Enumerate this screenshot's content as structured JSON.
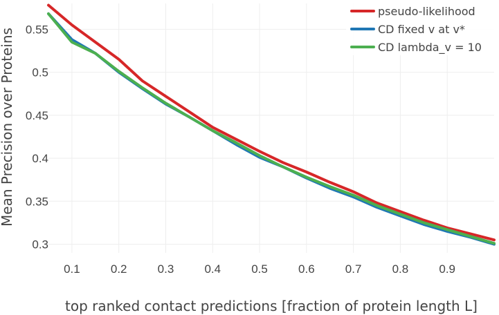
{
  "chart_data": {
    "type": "line",
    "title": "",
    "xlabel": "top ranked contact predictions [fraction of protein length L]",
    "ylabel": "Mean Precision over Proteins",
    "xlim": [
      0.05,
      1.0
    ],
    "ylim": [
      0.29,
      0.58
    ],
    "xticks": [
      "0.1",
      "0.2",
      "0.3",
      "0.4",
      "0.5",
      "0.6",
      "0.7",
      "0.8",
      "0.9"
    ],
    "yticks": [
      "0.3",
      "0.35",
      "0.4",
      "0.45",
      "0.5",
      "0.55"
    ],
    "grid": true,
    "legend_position": "top-right",
    "x": [
      0.05,
      0.1,
      0.15,
      0.2,
      0.25,
      0.3,
      0.35,
      0.4,
      0.45,
      0.5,
      0.55,
      0.6,
      0.65,
      0.7,
      0.75,
      0.8,
      0.85,
      0.9,
      0.95,
      1.0
    ],
    "series": [
      {
        "name": "pseudo-likelihood",
        "color": "#d62728",
        "values": [
          0.578,
          0.555,
          0.535,
          0.515,
          0.49,
          0.472,
          0.454,
          0.436,
          0.422,
          0.408,
          0.395,
          0.384,
          0.372,
          0.361,
          0.348,
          0.338,
          0.328,
          0.319,
          0.312,
          0.305
        ]
      },
      {
        "name": "CD fixed v at v*",
        "color": "#1f77b4",
        "values": [
          0.568,
          0.538,
          0.522,
          0.5,
          0.481,
          0.463,
          0.448,
          0.432,
          0.416,
          0.401,
          0.39,
          0.377,
          0.365,
          0.355,
          0.343,
          0.333,
          0.323,
          0.315,
          0.308,
          0.3
        ]
      },
      {
        "name": "CD lambda_v = 10",
        "color": "#4caf50",
        "values": [
          0.568,
          0.535,
          0.522,
          0.501,
          0.482,
          0.464,
          0.448,
          0.432,
          0.418,
          0.403,
          0.39,
          0.378,
          0.367,
          0.357,
          0.345,
          0.335,
          0.325,
          0.317,
          0.309,
          0.301
        ]
      }
    ]
  }
}
